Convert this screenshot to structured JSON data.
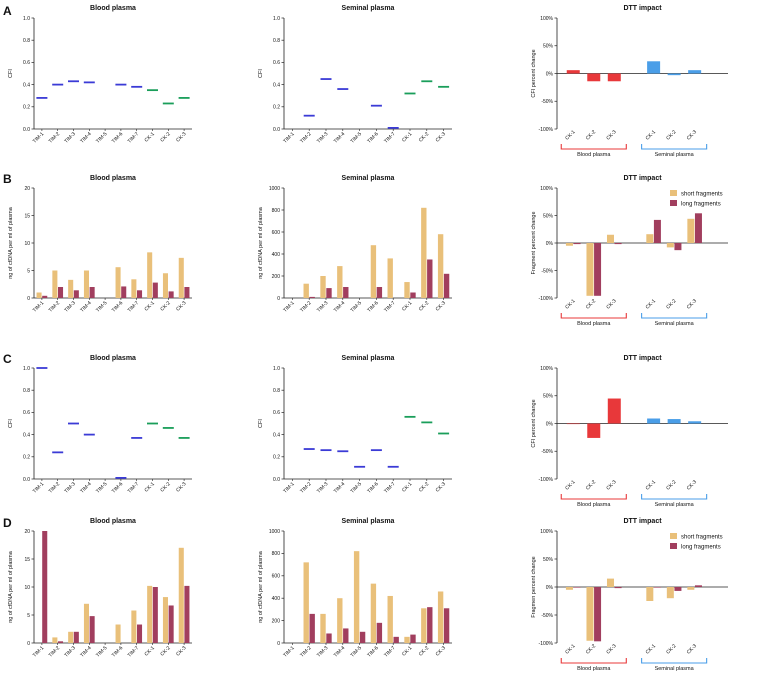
{
  "panel_letters": [
    "A",
    "B",
    "C",
    "D"
  ],
  "colors": {
    "tim": "#3b3bd6",
    "ck": "#1a9e5a",
    "short": "#e9c07a",
    "long": "#a13e5e",
    "blood": "#e8383a",
    "seminal": "#4a9ee8"
  },
  "group_labels": {
    "blood": "Blood plasma",
    "seminal": "Seminal plasma"
  },
  "legend": {
    "short": "short fragments",
    "long": "long fragments"
  },
  "chart_data": [
    {
      "id": "A1",
      "row": 0,
      "col": 0,
      "type": "scatter",
      "style": "dash",
      "title": "Blood plasma",
      "ylabel": "CFI",
      "ylim": [
        0,
        1
      ],
      "yticks": [
        0,
        0.2,
        0.4,
        0.6,
        0.8,
        1.0
      ],
      "ytick_labels": [
        "0.0",
        "0.2",
        "0.4",
        "0.6",
        "0.8",
        "1.0"
      ],
      "categories": [
        "TIM-1",
        "TIM-2",
        "TIM-3",
        "TIM-4",
        "TIM-5",
        "TIM-6",
        "TIM-7",
        "CK-1",
        "CK-2",
        "CK-3"
      ],
      "values": [
        0.28,
        0.4,
        0.43,
        0.42,
        null,
        0.4,
        0.38,
        0.35,
        0.23,
        0.28
      ]
    },
    {
      "id": "A2",
      "row": 0,
      "col": 1,
      "type": "scatter",
      "style": "dash",
      "title": "Seminal plasma",
      "ylabel": "CFI",
      "ylim": [
        0,
        1
      ],
      "yticks": [
        0,
        0.2,
        0.4,
        0.6,
        0.8,
        1.0
      ],
      "ytick_labels": [
        "0.0",
        "0.2",
        "0.4",
        "0.6",
        "0.8",
        "1.0"
      ],
      "categories": [
        "TIM-1",
        "TIM-2",
        "TIM-3",
        "TIM-4",
        "TIM-5",
        "TIM-6",
        "TIM-7",
        "CK-1",
        "CK-2",
        "CK-3"
      ],
      "values": [
        null,
        0.12,
        0.45,
        0.36,
        null,
        0.21,
        0.01,
        0.32,
        0.43,
        0.38
      ]
    },
    {
      "id": "A3",
      "row": 0,
      "col": 2,
      "type": "bar",
      "style": "impact",
      "title": "DTT impact",
      "ylabel": "CFI percent change",
      "ylim": [
        -100,
        100
      ],
      "yticks": [
        -100,
        -50,
        0,
        50,
        100
      ],
      "ytick_labels": [
        "-100%",
        "-50%",
        "0%",
        "50%",
        "100%"
      ],
      "categories": [
        "CK-1",
        "CK-2",
        "CK-3",
        "CK-1",
        "CK-2",
        "CK-3"
      ],
      "values": [
        6,
        -14,
        -14,
        22,
        -3,
        6
      ]
    },
    {
      "id": "B1",
      "row": 1,
      "col": 0,
      "type": "bar",
      "style": "pair",
      "title": "Blood plasma",
      "ylabel": "ng of cfDNA per ml of plasma",
      "ylim": [
        0,
        20
      ],
      "yticks": [
        0,
        5,
        10,
        15,
        20
      ],
      "ytick_labels": [
        "0",
        "5",
        "10",
        "15",
        "20"
      ],
      "categories": [
        "TIM-1",
        "TIM-2",
        "TIM-3",
        "TIM-4",
        "TIM-5",
        "TIM-6",
        "TIM-7",
        "CK-1",
        "CK-2",
        "CK-3"
      ],
      "series": [
        {
          "name": "short fragments",
          "values": [
            1,
            5,
            3.3,
            5,
            0,
            5.6,
            3.4,
            8.3,
            4.5,
            7.3
          ]
        },
        {
          "name": "long fragments",
          "values": [
            0.4,
            2,
            1.4,
            2,
            0,
            2.1,
            1.4,
            2.8,
            1.2,
            2
          ]
        }
      ]
    },
    {
      "id": "B2",
      "row": 1,
      "col": 1,
      "type": "bar",
      "style": "pair",
      "title": "Seminal plasma",
      "ylabel": "ng of cfDNA per ml of plasma",
      "ylim": [
        0,
        1000
      ],
      "yticks": [
        0,
        200,
        400,
        600,
        800,
        1000
      ],
      "ytick_labels": [
        "0",
        "200",
        "400",
        "600",
        "800",
        "1000"
      ],
      "categories": [
        "TIM-1",
        "TIM-2",
        "TIM-3",
        "TIM-4",
        "TIM-5",
        "TIM-6",
        "TIM-7",
        "CK-1",
        "CK-2",
        "CK-3"
      ],
      "series": [
        {
          "name": "short fragments",
          "values": [
            0,
            130,
            200,
            290,
            0,
            480,
            360,
            145,
            820,
            580
          ]
        },
        {
          "name": "long fragments",
          "values": [
            0,
            10,
            90,
            100,
            0,
            100,
            0,
            50,
            350,
            220
          ]
        }
      ]
    },
    {
      "id": "B3",
      "row": 1,
      "col": 2,
      "type": "bar",
      "style": "impactpair",
      "legend": true,
      "title": "DTT impact",
      "ylabel": "Fragment percent change",
      "ylim": [
        -100,
        100
      ],
      "yticks": [
        -100,
        -50,
        0,
        50,
        100
      ],
      "ytick_labels": [
        "-100%",
        "-50%",
        "0%",
        "50%",
        "100%"
      ],
      "categories": [
        "CK-1",
        "CK-2",
        "CK-3",
        "CK-1",
        "CK-2",
        "CK-3"
      ],
      "series": [
        {
          "name": "short fragments",
          "values": [
            -5,
            -96,
            15,
            16,
            -8,
            44
          ]
        },
        {
          "name": "long fragments",
          "values": [
            -2,
            -96,
            -2,
            42,
            -13,
            54
          ]
        }
      ]
    },
    {
      "id": "C1",
      "row": 2,
      "col": 0,
      "type": "scatter",
      "style": "dash",
      "title": "Blood plasma",
      "ylabel": "CFI",
      "ylim": [
        0,
        1
      ],
      "yticks": [
        0,
        0.2,
        0.4,
        0.6,
        0.8,
        1.0
      ],
      "ytick_labels": [
        "0.0",
        "0.2",
        "0.4",
        "0.6",
        "0.8",
        "1.0"
      ],
      "categories": [
        "TIM-1",
        "TIM-2",
        "TIM-3",
        "TIM-4",
        "TIM-5",
        "TIM-6",
        "TIM-7",
        "CK-1",
        "CK-2",
        "CK-3"
      ],
      "values": [
        1.0,
        0.24,
        0.5,
        0.4,
        null,
        0.01,
        0.37,
        0.5,
        0.46,
        0.37
      ]
    },
    {
      "id": "C2",
      "row": 2,
      "col": 1,
      "type": "scatter",
      "style": "dash",
      "title": "Seminal plasma",
      "ylabel": "CFI",
      "ylim": [
        0,
        1
      ],
      "yticks": [
        0,
        0.2,
        0.4,
        0.6,
        0.8,
        1.0
      ],
      "ytick_labels": [
        "0.0",
        "0.2",
        "0.4",
        "0.6",
        "0.8",
        "1.0"
      ],
      "categories": [
        "TIM-1",
        "TIM-2",
        "TIM-3",
        "TIM-4",
        "TIM-5",
        "TIM-6",
        "TIM-7",
        "CK-1",
        "CK-2",
        "CK-3"
      ],
      "values": [
        null,
        0.27,
        0.26,
        0.25,
        0.11,
        0.26,
        0.11,
        0.56,
        0.51,
        0.41
      ]
    },
    {
      "id": "C3",
      "row": 2,
      "col": 2,
      "type": "bar",
      "style": "impact",
      "title": "DTT impact",
      "ylabel": "CFI percent change",
      "ylim": [
        -100,
        100
      ],
      "yticks": [
        -100,
        -50,
        0,
        50,
        100
      ],
      "ytick_labels": [
        "-100%",
        "-50%",
        "0%",
        "50%",
        "100%"
      ],
      "categories": [
        "CK-1",
        "CK-2",
        "CK-3",
        "CK-1",
        "CK-2",
        "CK-3"
      ],
      "values": [
        0,
        -26,
        45,
        9,
        8,
        4
      ]
    },
    {
      "id": "D1",
      "row": 3,
      "col": 0,
      "type": "bar",
      "style": "pair",
      "title": "Blood plasma",
      "ylabel": "ng of cfDNA per ml of plasma",
      "ylim": [
        0,
        20
      ],
      "yticks": [
        0,
        5,
        10,
        15,
        20
      ],
      "ytick_labels": [
        "0",
        "5",
        "10",
        "15",
        "20"
      ],
      "categories": [
        "TIM-1",
        "TIM-2",
        "TIM-3",
        "TIM-4",
        "TIM-5",
        "TIM-6",
        "TIM-7",
        "CK-1",
        "CK-2",
        "CK-3"
      ],
      "series": [
        {
          "name": "short fragments",
          "values": [
            0,
            1,
            2,
            7,
            0,
            3.3,
            5.8,
            10.2,
            8.2,
            17
          ]
        },
        {
          "name": "long fragments",
          "values": [
            20,
            0.3,
            2,
            4.8,
            0,
            0,
            3.3,
            10,
            6.7,
            10.2
          ]
        }
      ]
    },
    {
      "id": "D2",
      "row": 3,
      "col": 1,
      "type": "bar",
      "style": "pair",
      "title": "Seminal plasma",
      "ylabel": "ng of cfDNA per ml of plasma",
      "ylim": [
        0,
        1000
      ],
      "yticks": [
        0,
        200,
        400,
        600,
        800,
        1000
      ],
      "ytick_labels": [
        "0",
        "200",
        "400",
        "600",
        "800",
        "1000"
      ],
      "categories": [
        "TIM-1",
        "TIM-2",
        "TIM-3",
        "TIM-4",
        "TIM-5",
        "TIM-6",
        "TIM-7",
        "CK-1",
        "CK-2",
        "CK-3"
      ],
      "series": [
        {
          "name": "short fragments",
          "values": [
            0,
            720,
            260,
            400,
            820,
            530,
            420,
            55,
            310,
            460
          ]
        },
        {
          "name": "long fragments",
          "values": [
            0,
            260,
            85,
            130,
            100,
            180,
            55,
            75,
            320,
            310
          ]
        }
      ]
    },
    {
      "id": "D3",
      "row": 3,
      "col": 2,
      "type": "bar",
      "style": "impactpair",
      "legend": true,
      "title": "DTT impact",
      "ylabel": "Fragmen percent change",
      "ylim": [
        -100,
        100
      ],
      "yticks": [
        -100,
        -50,
        0,
        50,
        100
      ],
      "ytick_labels": [
        "-100%",
        "-50%",
        "0%",
        "50%",
        "100%"
      ],
      "categories": [
        "CK-1",
        "CK-2",
        "CK-3",
        "CK-1",
        "CK-2",
        "CK-3"
      ],
      "series": [
        {
          "name": "short fragments",
          "values": [
            -5,
            -96,
            15,
            -25,
            -20,
            -5
          ]
        },
        {
          "name": "long fragments",
          "values": [
            -1,
            -97,
            -2,
            0,
            -7,
            3
          ]
        }
      ]
    }
  ]
}
